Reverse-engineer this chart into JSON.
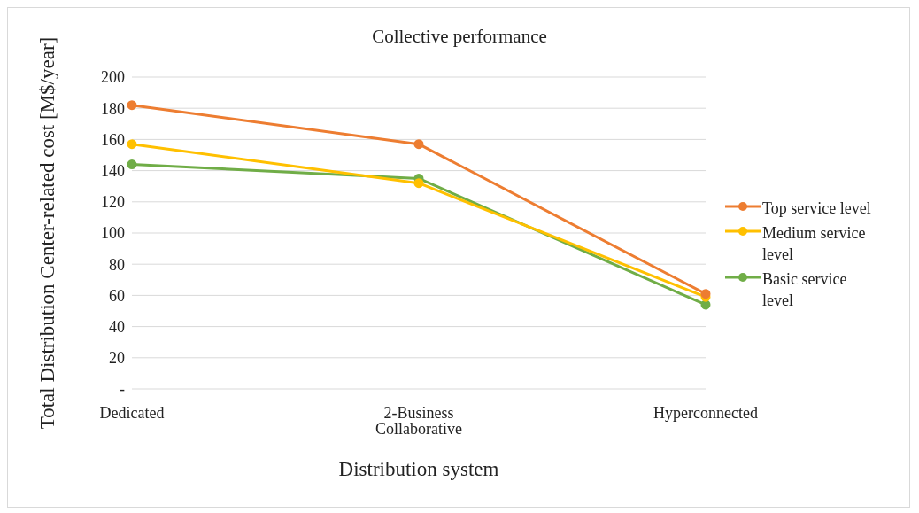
{
  "chart_data": {
    "type": "line",
    "title": "Collective performance",
    "xlabel": "Distribution system",
    "ylabel": "Total Distribution Center-related cost [M$/year]",
    "categories": [
      "Dedicated",
      "2-Business Collaborative",
      "Hyperconnected"
    ],
    "series": [
      {
        "name": "Top service level",
        "color": "#ed7d31",
        "values": [
          182,
          157,
          61
        ]
      },
      {
        "name": "Medium service level",
        "color": "#ffc000",
        "values": [
          157,
          132,
          59
        ]
      },
      {
        "name": "Basic service level",
        "color": "#70ad47",
        "values": [
          144,
          135,
          54
        ]
      }
    ],
    "ylim": [
      0,
      200
    ],
    "yticks": [
      {
        "value": 0,
        "label": "-"
      },
      20,
      40,
      60,
      80,
      100,
      120,
      140,
      160,
      180,
      200
    ],
    "grid": "y",
    "legend": "right",
    "marker": "circle",
    "line_style": "solid"
  }
}
